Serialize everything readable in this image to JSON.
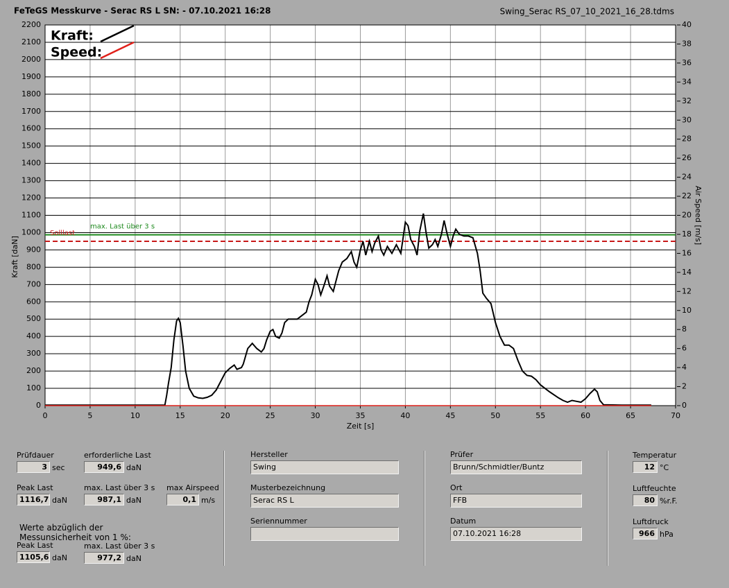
{
  "header": {
    "title": "FeTeGS Messkurve - Serac RS L  SN:  - 07.10.2021 16:28",
    "file": "Swing_Serac RS_07_10_2021_16_28.tdms"
  },
  "chart_data": {
    "type": "line",
    "xlabel": "Zeit [s]",
    "ylabel": "Kraft [daN]",
    "y2label": "Air Speed [m/s]",
    "xlim": [
      0,
      70
    ],
    "xticks": [
      0,
      5,
      10,
      15,
      20,
      25,
      30,
      35,
      40,
      45,
      50,
      55,
      60,
      65,
      70
    ],
    "ylim": [
      0,
      2200
    ],
    "yticks": [
      0,
      100,
      200,
      300,
      400,
      500,
      600,
      700,
      800,
      900,
      1000,
      1100,
      1200,
      1300,
      1400,
      1500,
      1600,
      1700,
      1800,
      1900,
      2000,
      2100,
      2200
    ],
    "y2lim": [
      0,
      40
    ],
    "y2ticks": [
      0,
      2,
      4,
      6,
      8,
      10,
      12,
      14,
      16,
      18,
      20,
      22,
      24,
      26,
      28,
      30,
      32,
      34,
      36,
      38,
      40
    ],
    "grid": true,
    "legend": "top-left",
    "series": [
      {
        "name": "Kraft:",
        "color": "#000000",
        "x": [
          0,
          13.3,
          13.5,
          13.7,
          14,
          14.3,
          14.6,
          14.8,
          15,
          15.3,
          15.6,
          16,
          16.5,
          17,
          17.5,
          18,
          18.5,
          19,
          19.5,
          20,
          20.5,
          21,
          21.3,
          21.8,
          22,
          22.5,
          23,
          23.5,
          24,
          24.3,
          24.6,
          25,
          25.3,
          25.6,
          26,
          26.3,
          26.6,
          27,
          27.5,
          28,
          28.5,
          29,
          29.3,
          29.6,
          30,
          30.3,
          30.6,
          31,
          31.3,
          31.6,
          32,
          32.3,
          32.6,
          33,
          33.5,
          34,
          34.3,
          34.6,
          35,
          35.3,
          35.6,
          36,
          36.3,
          36.6,
          37,
          37.3,
          37.6,
          38,
          38.5,
          39,
          39.5,
          40,
          40.3,
          40.6,
          41,
          41.3,
          41.6,
          42,
          42.3,
          42.6,
          43,
          43.3,
          43.6,
          44,
          44.3,
          44.6,
          45,
          45.3,
          45.6,
          46,
          46.5,
          47,
          47.5,
          48,
          48.3,
          48.6,
          49,
          49.5,
          50,
          50.5,
          51,
          51.5,
          52,
          52.5,
          53,
          53.5,
          54,
          54.5,
          55,
          56,
          57,
          57.5,
          58,
          58.5,
          59,
          59.5,
          60,
          60.5,
          61,
          61.3,
          61.6,
          62,
          64,
          67.3
        ],
        "values": [
          3,
          3,
          60,
          130,
          220,
          380,
          490,
          505,
          480,
          350,
          200,
          100,
          55,
          45,
          42,
          48,
          60,
          90,
          140,
          190,
          215,
          235,
          210,
          220,
          240,
          330,
          360,
          330,
          310,
          330,
          380,
          430,
          440,
          400,
          390,
          420,
          480,
          500,
          500,
          500,
          520,
          540,
          600,
          640,
          730,
          700,
          640,
          700,
          750,
          690,
          660,
          720,
          780,
          830,
          850,
          890,
          830,
          800,
          900,
          950,
          870,
          950,
          890,
          940,
          980,
          900,
          870,
          920,
          880,
          930,
          880,
          1060,
          1040,
          960,
          920,
          870,
          1010,
          1110,
          1000,
          910,
          930,
          960,
          920,
          990,
          1070,
          1000,
          920,
          980,
          1020,
          990,
          980,
          980,
          970,
          880,
          780,
          650,
          620,
          590,
          480,
          400,
          350,
          350,
          330,
          260,
          200,
          175,
          170,
          150,
          120,
          80,
          45,
          30,
          20,
          30,
          25,
          20,
          40,
          70,
          95,
          80,
          30,
          5,
          3,
          3
        ]
      },
      {
        "name": "Speed:",
        "color": "#e0201a",
        "axis": "y2",
        "x": [
          0,
          67.3
        ],
        "values": [
          0,
          0
        ]
      }
    ],
    "reference_lines": [
      {
        "label": "max. Last über  3 s",
        "value": 987.1,
        "color": "#1e8a1e",
        "style": "solid"
      },
      {
        "label": "Solllast",
        "value": 949.6,
        "color": "#c81818",
        "style": "dashed"
      }
    ]
  },
  "fields": [
    {
      "label": "Prüfdauer",
      "value": "3",
      "unit": "sec"
    },
    {
      "label": "erforderliche Last",
      "value": "949,6",
      "unit": "daN"
    },
    {
      "label": "Peak Last",
      "value": "1116,7",
      "unit": "daN"
    },
    {
      "label": "max. Last über  3 s",
      "value": "987,1",
      "unit": "daN"
    },
    {
      "label": "max Airspeed",
      "value": "0,1",
      "unit": "m/s"
    },
    {
      "label": "Peak Last",
      "value": "1105,6",
      "unit": "daN"
    },
    {
      "label": "max. Last über  3 s",
      "value": "977,2",
      "unit": "daN"
    },
    {
      "label": "Hersteller",
      "value": "Swing"
    },
    {
      "label": "Musterbezeichnung",
      "value": "Serac RS L"
    },
    {
      "label": "Seriennummer"
    },
    {
      "label": "Prüfer",
      "value": "Brunn/Schmidtler/Buntz"
    },
    {
      "label": "Ort",
      "value": "FFB"
    },
    {
      "label": "Datum",
      "value": "07.10.2021 16:28"
    },
    {
      "label": "Temperatur",
      "value": "12",
      "unit": "°C"
    },
    {
      "label": "Luftfeuchte",
      "value": "80",
      "unit": "%r.F."
    },
    {
      "label": "Luftdruck",
      "value": "966",
      "unit": "hPa"
    }
  ],
  "note": [
    "Werte abzüglich der",
    "Messunsicherheit von 1  %:"
  ]
}
